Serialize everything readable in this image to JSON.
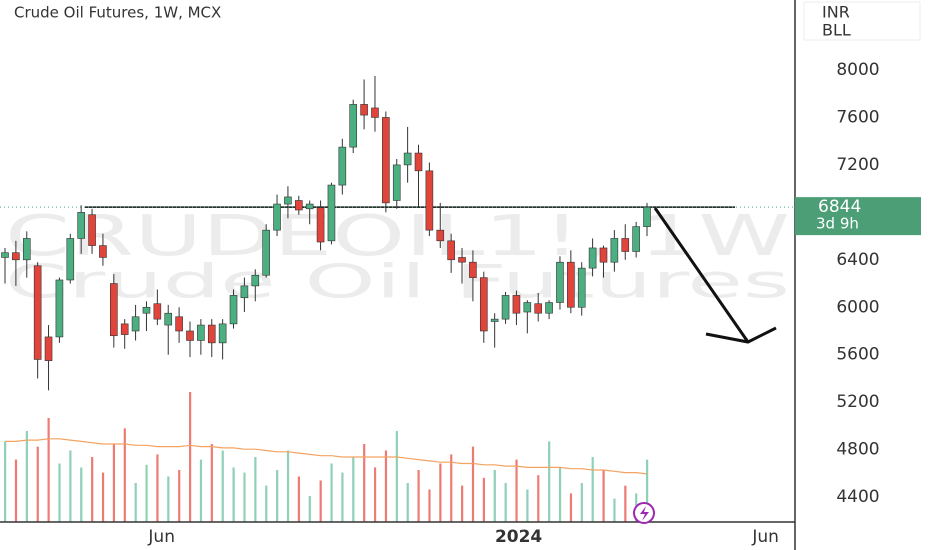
{
  "chart_data": {
    "type": "candlestick",
    "title": "Crude Oil Futures, 1W, MCX",
    "watermark": [
      "CRUDEOIL1!, 1W",
      "Crude Oil Futures"
    ],
    "currency": "INR",
    "unit": "BLL",
    "last_price": 6844,
    "countdown": "3d 9h",
    "level": 6844,
    "up_color": "#4caf82",
    "down_color": "#e0443b",
    "ylim": [
      4190,
      8590
    ],
    "yticks": [
      4400,
      4800,
      5200,
      5600,
      6000,
      6400,
      6800,
      7200,
      7600,
      8000
    ],
    "visible_yticks": [
      0,
      1,
      2,
      3,
      4,
      5,
      7,
      8,
      9
    ],
    "xlim": [
      -0.46,
      72.6
    ],
    "xticks": [
      {
        "value": 14.4,
        "label": "Jun"
      },
      {
        "value": 47.2,
        "label": "2024"
      },
      {
        "value": 69.9,
        "label": "Jun"
      }
    ],
    "open": [
      6420,
      6460,
      6400,
      6350,
      5750,
      5750,
      6230,
      6580,
      6780,
      6520,
      6200,
      5860,
      5800,
      5950,
      6030,
      5850,
      5920,
      5800,
      5720,
      5850,
      5700,
      5860,
      6080,
      6180,
      6270,
      6650,
      6870,
      6900,
      6830,
      6840,
      6560,
      7030,
      7350,
      7710,
      7680,
      7600,
      6900,
      7200,
      7300,
      7150,
      6650,
      6560,
      6420,
      6380,
      6250,
      5880,
      5900,
      6100,
      5960,
      6030,
      5950,
      6040,
      6380,
      6000,
      6330,
      6500,
      6380,
      6580,
      6470,
      6680
    ],
    "high": [
      6500,
      6560,
      6640,
      6380,
      5850,
      6250,
      6620,
      6860,
      6830,
      6620,
      6280,
      5900,
      6020,
      6050,
      6150,
      6020,
      6000,
      5880,
      5900,
      5900,
      5900,
      6150,
      6250,
      6320,
      6700,
      6950,
      7020,
      6940,
      6900,
      6900,
      7050,
      7420,
      7750,
      7920,
      7950,
      7650,
      7250,
      7520,
      7370,
      7220,
      6880,
      6620,
      6500,
      6480,
      6300,
      5950,
      6130,
      6140,
      6060,
      6120,
      6060,
      6430,
      6480,
      6380,
      6580,
      6520,
      6650,
      6700,
      6720,
      6880
    ],
    "low": [
      6200,
      6180,
      6250,
      5400,
      5300,
      5700,
      6200,
      6450,
      6450,
      6350,
      5660,
      5650,
      5720,
      5800,
      5850,
      5600,
      5700,
      5580,
      5600,
      5580,
      5560,
      5820,
      5960,
      6050,
      6250,
      6600,
      6750,
      6780,
      6700,
      6480,
      6530,
      6950,
      7300,
      7500,
      7480,
      6800,
      6830,
      7050,
      6850,
      6600,
      6500,
      6290,
      6200,
      6050,
      5700,
      5660,
      5860,
      5850,
      5780,
      5880,
      5900,
      5980,
      5950,
      5930,
      6260,
      6250,
      6300,
      6400,
      6420,
      6600
    ],
    "close": [
      6460,
      6400,
      6580,
      5560,
      5550,
      6230,
      6580,
      6800,
      6520,
      6420,
      5760,
      5770,
      5920,
      6000,
      5900,
      5950,
      5800,
      5720,
      5850,
      5700,
      5860,
      6100,
      6180,
      6270,
      6650,
      6870,
      6930,
      6820,
      6870,
      6550,
      7030,
      7350,
      7710,
      7620,
      7600,
      6880,
      7200,
      7300,
      7150,
      6650,
      6560,
      6400,
      6380,
      6250,
      5800,
      5900,
      6100,
      5950,
      6040,
      5950,
      6040,
      6380,
      6000,
      6330,
      6500,
      6380,
      6580,
      6470,
      6680,
      6844
    ],
    "volume": [
      62,
      48,
      70,
      58,
      80,
      45,
      55,
      42,
      50,
      38,
      60,
      72,
      30,
      44,
      52,
      35,
      40,
      100,
      48,
      60,
      55,
      42,
      38,
      50,
      28,
      40,
      55,
      35,
      20,
      32,
      45,
      38,
      50,
      60,
      42,
      55,
      70,
      30,
      40,
      25,
      45,
      52,
      28,
      58,
      34,
      40,
      30,
      48,
      25,
      36,
      62,
      42,
      22,
      30,
      50,
      40,
      18,
      28,
      22,
      48
    ],
    "volume_ma": [
      62,
      62,
      63,
      63,
      64,
      64,
      63,
      62,
      61,
      60,
      60,
      60,
      59,
      59,
      58,
      58,
      58,
      59,
      58,
      58,
      57,
      57,
      56,
      56,
      55,
      54,
      54,
      53,
      52,
      51,
      51,
      50,
      50,
      50,
      50,
      50,
      50,
      49,
      48,
      47,
      46,
      46,
      45,
      45,
      44,
      44,
      43,
      43,
      42,
      42,
      42,
      42,
      41,
      41,
      40,
      40,
      39,
      38,
      38,
      37
    ]
  }
}
